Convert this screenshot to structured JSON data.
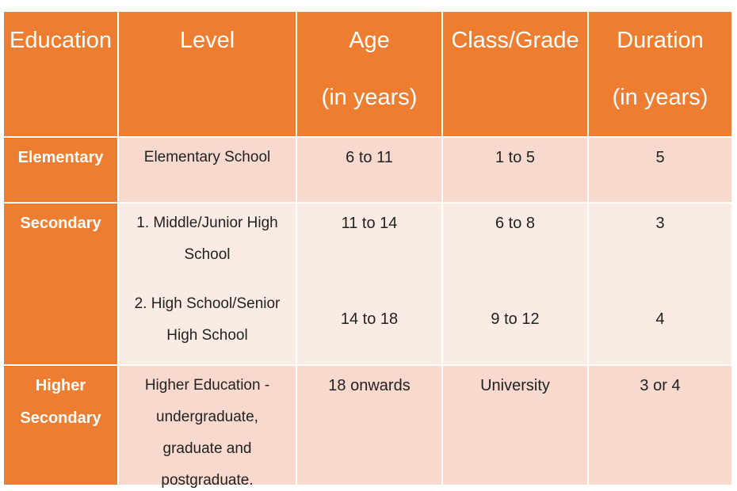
{
  "header": [
    {
      "lines": [
        "Education"
      ]
    },
    {
      "lines": [
        "Level"
      ]
    },
    {
      "lines": [
        "Age",
        "(in years)"
      ]
    },
    {
      "lines": [
        "Class/Grade"
      ]
    },
    {
      "lines": [
        "Duration",
        "(in years)"
      ]
    }
  ],
  "rows": [
    {
      "education": "Elementary",
      "entries": [
        {
          "level": "Elementary School",
          "age": "6 to 11",
          "grade": "1 to 5",
          "duration": "5"
        }
      ]
    },
    {
      "education": "Secondary",
      "entries": [
        {
          "level": "1. Middle/Junior High School",
          "age": "11 to 14",
          "grade": "6 to 8",
          "duration": "3"
        },
        {
          "level": "2. High School/Senior High School",
          "age": "14 to 18",
          "grade": "9 to 12",
          "duration": "4"
        }
      ]
    },
    {
      "education": "Higher Secondary",
      "entries": [
        {
          "level": "Higher Education - undergraduate, graduate and postgraduate.",
          "age": "18 onwards",
          "grade": "University",
          "duration": "3 or 4"
        }
      ]
    }
  ]
}
